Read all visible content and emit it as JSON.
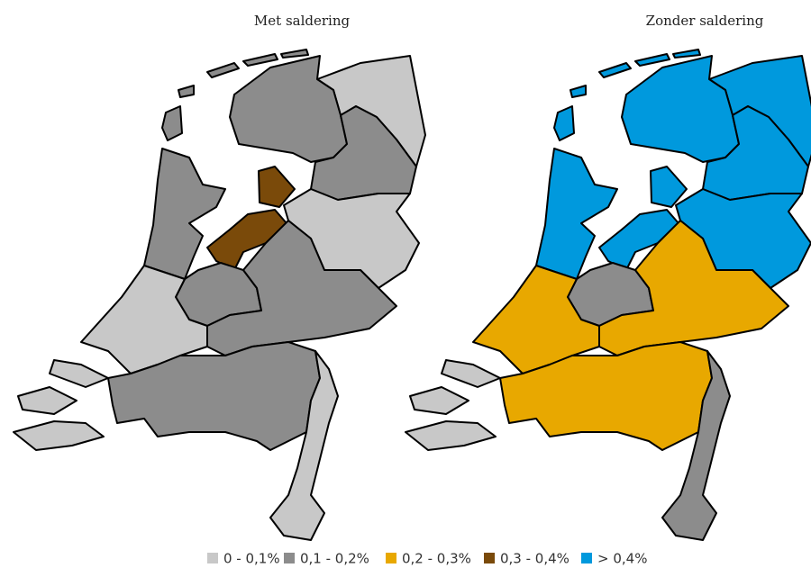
{
  "legend": [
    {
      "label": "0 - 0,1%",
      "color": "#c8c8c8"
    },
    {
      "label": "0,1 - 0,2%",
      "color": "#8c8c8c"
    },
    {
      "label": "0,2 - 0,3%",
      "color": "#e8a800"
    },
    {
      "label": "0,3 - 0,4%",
      "color": "#7a4a0a"
    },
    {
      "label": "> 0,4%",
      "color": "#0099dd"
    }
  ],
  "maps": [
    {
      "title": "Met saldering",
      "regions": [
        0,
        1,
        1,
        0,
        3,
        1,
        1,
        1,
        0,
        0,
        1,
        0
      ]
    },
    {
      "title": "Zonder saldering",
      "regions": [
        4,
        4,
        4,
        4,
        4,
        4,
        1,
        2,
        2,
        0,
        2,
        1
      ]
    }
  ]
}
